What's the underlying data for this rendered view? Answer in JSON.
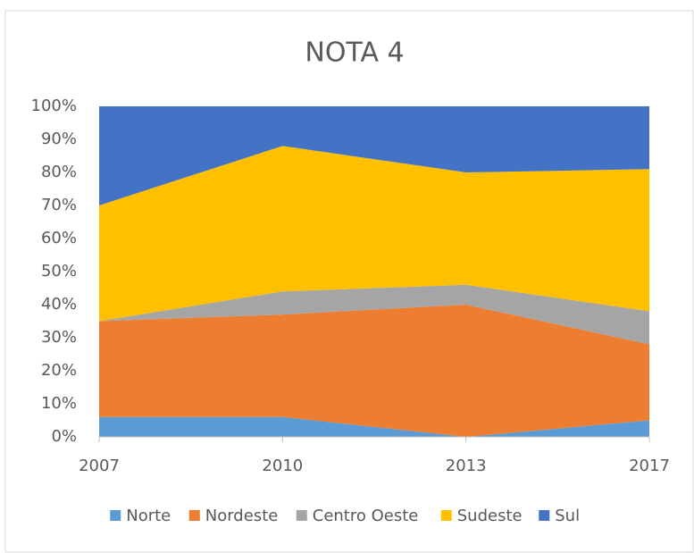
{
  "chart_data": {
    "type": "stacked_area",
    "title": "NOTA 4",
    "categories": [
      "2007",
      "2010",
      "2013",
      "2017"
    ],
    "series": [
      {
        "name": "Norte",
        "color": "#5b9bd5",
        "values": [
          6,
          6,
          0,
          5
        ]
      },
      {
        "name": "Nordeste",
        "color": "#ed7d31",
        "values": [
          29,
          31,
          40,
          23
        ]
      },
      {
        "name": "Centro Oeste",
        "color": "#a5a5a5",
        "values": [
          0,
          7,
          6,
          10
        ]
      },
      {
        "name": "Sudeste",
        "color": "#ffc000",
        "values": [
          35,
          44,
          34,
          43
        ]
      },
      {
        "name": "Sul",
        "color": "#4472c4",
        "values": [
          30,
          12,
          20,
          19
        ]
      }
    ],
    "ylim": [
      0,
      100
    ],
    "yticks": [
      {
        "value": 0,
        "label": "0%"
      },
      {
        "value": 10,
        "label": "10%"
      },
      {
        "value": 20,
        "label": "20%"
      },
      {
        "value": 30,
        "label": "30%"
      },
      {
        "value": 40,
        "label": "40%"
      },
      {
        "value": 50,
        "label": "50%"
      },
      {
        "value": 60,
        "label": "60%"
      },
      {
        "value": 70,
        "label": "70%"
      },
      {
        "value": 80,
        "label": "80%"
      },
      {
        "value": 90,
        "label": "90%"
      },
      {
        "value": 100,
        "label": "100%"
      }
    ],
    "legend": "bottom"
  }
}
